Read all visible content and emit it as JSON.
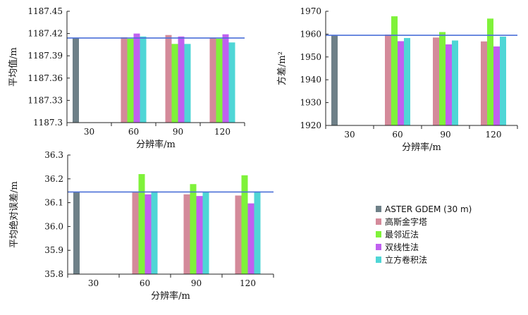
{
  "chart_data": [
    {
      "type": "bar",
      "categories": [
        "30",
        "60",
        "90",
        "120"
      ],
      "xlabel": "分辨率/m",
      "ylabel": "平均值/m",
      "ylim": [
        1187.3,
        1187.45
      ],
      "yticks": [
        "1187.3",
        "1187.33",
        "1187.36",
        "1187.39",
        "1187.42",
        "1187.45"
      ],
      "reference_line": 1187.414,
      "series": [
        {
          "name": "ASTER GDEM (30 m)",
          "values": [
            1187.414,
            null,
            null,
            null
          ]
        },
        {
          "name": "高斯金字塔",
          "values": [
            null,
            1187.415,
            1187.418,
            1187.414
          ]
        },
        {
          "name": "最邻近法",
          "values": [
            null,
            1187.413,
            1187.406,
            1187.413
          ]
        },
        {
          "name": "双线性法",
          "values": [
            null,
            1187.42,
            1187.416,
            1187.419
          ]
        },
        {
          "name": "立方卷积法",
          "values": [
            null,
            1187.416,
            1187.406,
            1187.408
          ]
        }
      ]
    },
    {
      "type": "bar",
      "categories": [
        "30",
        "60",
        "90",
        "120"
      ],
      "xlabel": "分辨率/m",
      "ylabel": "方差/m²",
      "ylim": [
        1920,
        1970
      ],
      "yticks": [
        "1920",
        "1930",
        "1940",
        "1950",
        "1960",
        "1970"
      ],
      "reference_line": 1959.5,
      "series": [
        {
          "name": "ASTER GDEM (30 m)",
          "values": [
            1959.5,
            null,
            null,
            null
          ]
        },
        {
          "name": "高斯金字塔",
          "values": [
            null,
            1959.8,
            1958.5,
            1956.8
          ]
        },
        {
          "name": "最邻近法",
          "values": [
            null,
            1967.8,
            1960.9,
            1966.8
          ]
        },
        {
          "name": "双线性法",
          "values": [
            null,
            1956.9,
            1955.5,
            1954.6
          ]
        },
        {
          "name": "立方卷积法",
          "values": [
            null,
            1958.3,
            1957.2,
            1958.9
          ]
        }
      ]
    },
    {
      "type": "bar",
      "categories": [
        "30",
        "60",
        "90",
        "120"
      ],
      "xlabel": "分辨率/m",
      "ylabel": "平均绝对误差/m",
      "ylim": [
        35.8,
        36.3
      ],
      "yticks": [
        "35.8",
        "35.9",
        "36.0",
        "36.1",
        "36.2",
        "36.3"
      ],
      "reference_line": 36.145,
      "series": [
        {
          "name": "ASTER GDEM (30 m)",
          "values": [
            36.145,
            null,
            null,
            null
          ]
        },
        {
          "name": "高斯金字塔",
          "values": [
            null,
            36.143,
            36.135,
            36.13
          ]
        },
        {
          "name": "最邻近法",
          "values": [
            null,
            36.22,
            36.178,
            36.215
          ]
        },
        {
          "name": "双线性法",
          "values": [
            null,
            36.135,
            36.128,
            36.097
          ]
        },
        {
          "name": "立方卷积法",
          "values": [
            null,
            36.148,
            36.145,
            36.147
          ]
        }
      ]
    }
  ],
  "legend": {
    "items": [
      {
        "label": "ASTER GDEM (30 m)",
        "color": "#6e8088"
      },
      {
        "label": "高斯金字塔",
        "color": "#d48a9a"
      },
      {
        "label": "最邻近法",
        "color": "#7ff23a"
      },
      {
        "label": "双线性法",
        "color": "#c060f0"
      },
      {
        "label": "立方卷积法",
        "color": "#4fd6d6"
      }
    ]
  },
  "colors": {
    "reference_line": "#4a6fd8",
    "axis": "#222222"
  }
}
